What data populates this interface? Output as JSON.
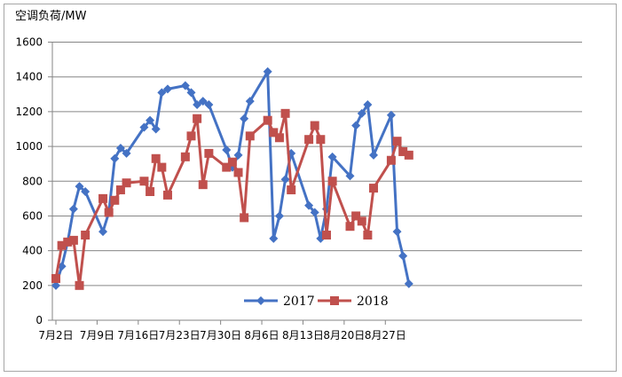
{
  "chart_data": {
    "type": "line",
    "title": "",
    "ylabel": "空调负荷/MW",
    "xlabel": "",
    "ylim": [
      0,
      1600
    ],
    "yticks": [
      0,
      200,
      400,
      600,
      800,
      1000,
      1200,
      1400,
      1600
    ],
    "x_tick_labels": [
      "7月2日",
      "7月9日",
      "7月16日",
      "7月23日",
      "7月30日",
      "8月6日",
      "8月13日",
      "8月20日",
      "8月27日"
    ],
    "grid": "horizontal",
    "legend": "bottom-center",
    "series": [
      {
        "name": "2017",
        "color": "#4472C4",
        "marker": "diamond",
        "points": [
          [
            "7月2日",
            200
          ],
          [
            "7月3日",
            310
          ],
          [
            "7月4日",
            450
          ],
          [
            "7月5日",
            640
          ],
          [
            "7月6日",
            770
          ],
          [
            "7月7日",
            740
          ],
          [
            "7月10日",
            510
          ],
          [
            "7月11日",
            620
          ],
          [
            "7月12日",
            930
          ],
          [
            "7月13日",
            990
          ],
          [
            "7月14日",
            960
          ],
          [
            "7月17日",
            1110
          ],
          [
            "7月18日",
            1150
          ],
          [
            "7月19日",
            1100
          ],
          [
            "7月20日",
            1310
          ],
          [
            "7月21日",
            1330
          ],
          [
            "7月24日",
            1350
          ],
          [
            "7月25日",
            1310
          ],
          [
            "7月26日",
            1240
          ],
          [
            "7月27日",
            1260
          ],
          [
            "7月28日",
            1240
          ],
          [
            "7月31日",
            980
          ],
          [
            "8月1日",
            880
          ],
          [
            "8月2日",
            950
          ],
          [
            "8月3日",
            1160
          ],
          [
            "8月4日",
            1260
          ],
          [
            "8月7日",
            1430
          ],
          [
            "8月8日",
            470
          ],
          [
            "8月9日",
            600
          ],
          [
            "8月10日",
            810
          ],
          [
            "8月11日",
            960
          ],
          [
            "8月14日",
            660
          ],
          [
            "8月15日",
            620
          ],
          [
            "8月16日",
            470
          ],
          [
            "8月17日",
            640
          ],
          [
            "8月18日",
            940
          ],
          [
            "8月21日",
            830
          ],
          [
            "8月22日",
            1120
          ],
          [
            "8月23日",
            1190
          ],
          [
            "8月24日",
            1240
          ],
          [
            "8月25日",
            950
          ],
          [
            "8月28日",
            1180
          ],
          [
            "8月29日",
            510
          ],
          [
            "8月30日",
            370
          ],
          [
            "8月31日",
            210
          ]
        ]
      },
      {
        "name": "2018",
        "color": "#C0504D",
        "marker": "square",
        "points": [
          [
            "7月2日",
            240
          ],
          [
            "7月3日",
            430
          ],
          [
            "7月4日",
            450
          ],
          [
            "7月5日",
            460
          ],
          [
            "7月6日",
            200
          ],
          [
            "7月7日",
            490
          ],
          [
            "7月10日",
            700
          ],
          [
            "7月11日",
            620
          ],
          [
            "7月12日",
            690
          ],
          [
            "7月13日",
            750
          ],
          [
            "7月14日",
            790
          ],
          [
            "7月17日",
            800
          ],
          [
            "7月18日",
            740
          ],
          [
            "7月19日",
            930
          ],
          [
            "7月20日",
            880
          ],
          [
            "7月21日",
            720
          ],
          [
            "7月24日",
            940
          ],
          [
            "7月25日",
            1060
          ],
          [
            "7月26日",
            1160
          ],
          [
            "7月27日",
            780
          ],
          [
            "7月28日",
            960
          ],
          [
            "7月31日",
            880
          ],
          [
            "8月1日",
            910
          ],
          [
            "8月2日",
            850
          ],
          [
            "8月3日",
            590
          ],
          [
            "8月4日",
            1060
          ],
          [
            "8月7日",
            1150
          ],
          [
            "8月8日",
            1080
          ],
          [
            "8月9日",
            1050
          ],
          [
            "8月10日",
            1190
          ],
          [
            "8月11日",
            750
          ],
          [
            "8月14日",
            1040
          ],
          [
            "8月15日",
            1120
          ],
          [
            "8月16日",
            1040
          ],
          [
            "8月17日",
            490
          ],
          [
            "8月18日",
            800
          ],
          [
            "8月21日",
            540
          ],
          [
            "8月22日",
            600
          ],
          [
            "8月23日",
            570
          ],
          [
            "8月24日",
            490
          ],
          [
            "8月25日",
            760
          ],
          [
            "8月28日",
            920
          ],
          [
            "8月29日",
            1030
          ],
          [
            "8月30日",
            970
          ],
          [
            "8月31日",
            950
          ]
        ]
      }
    ]
  }
}
